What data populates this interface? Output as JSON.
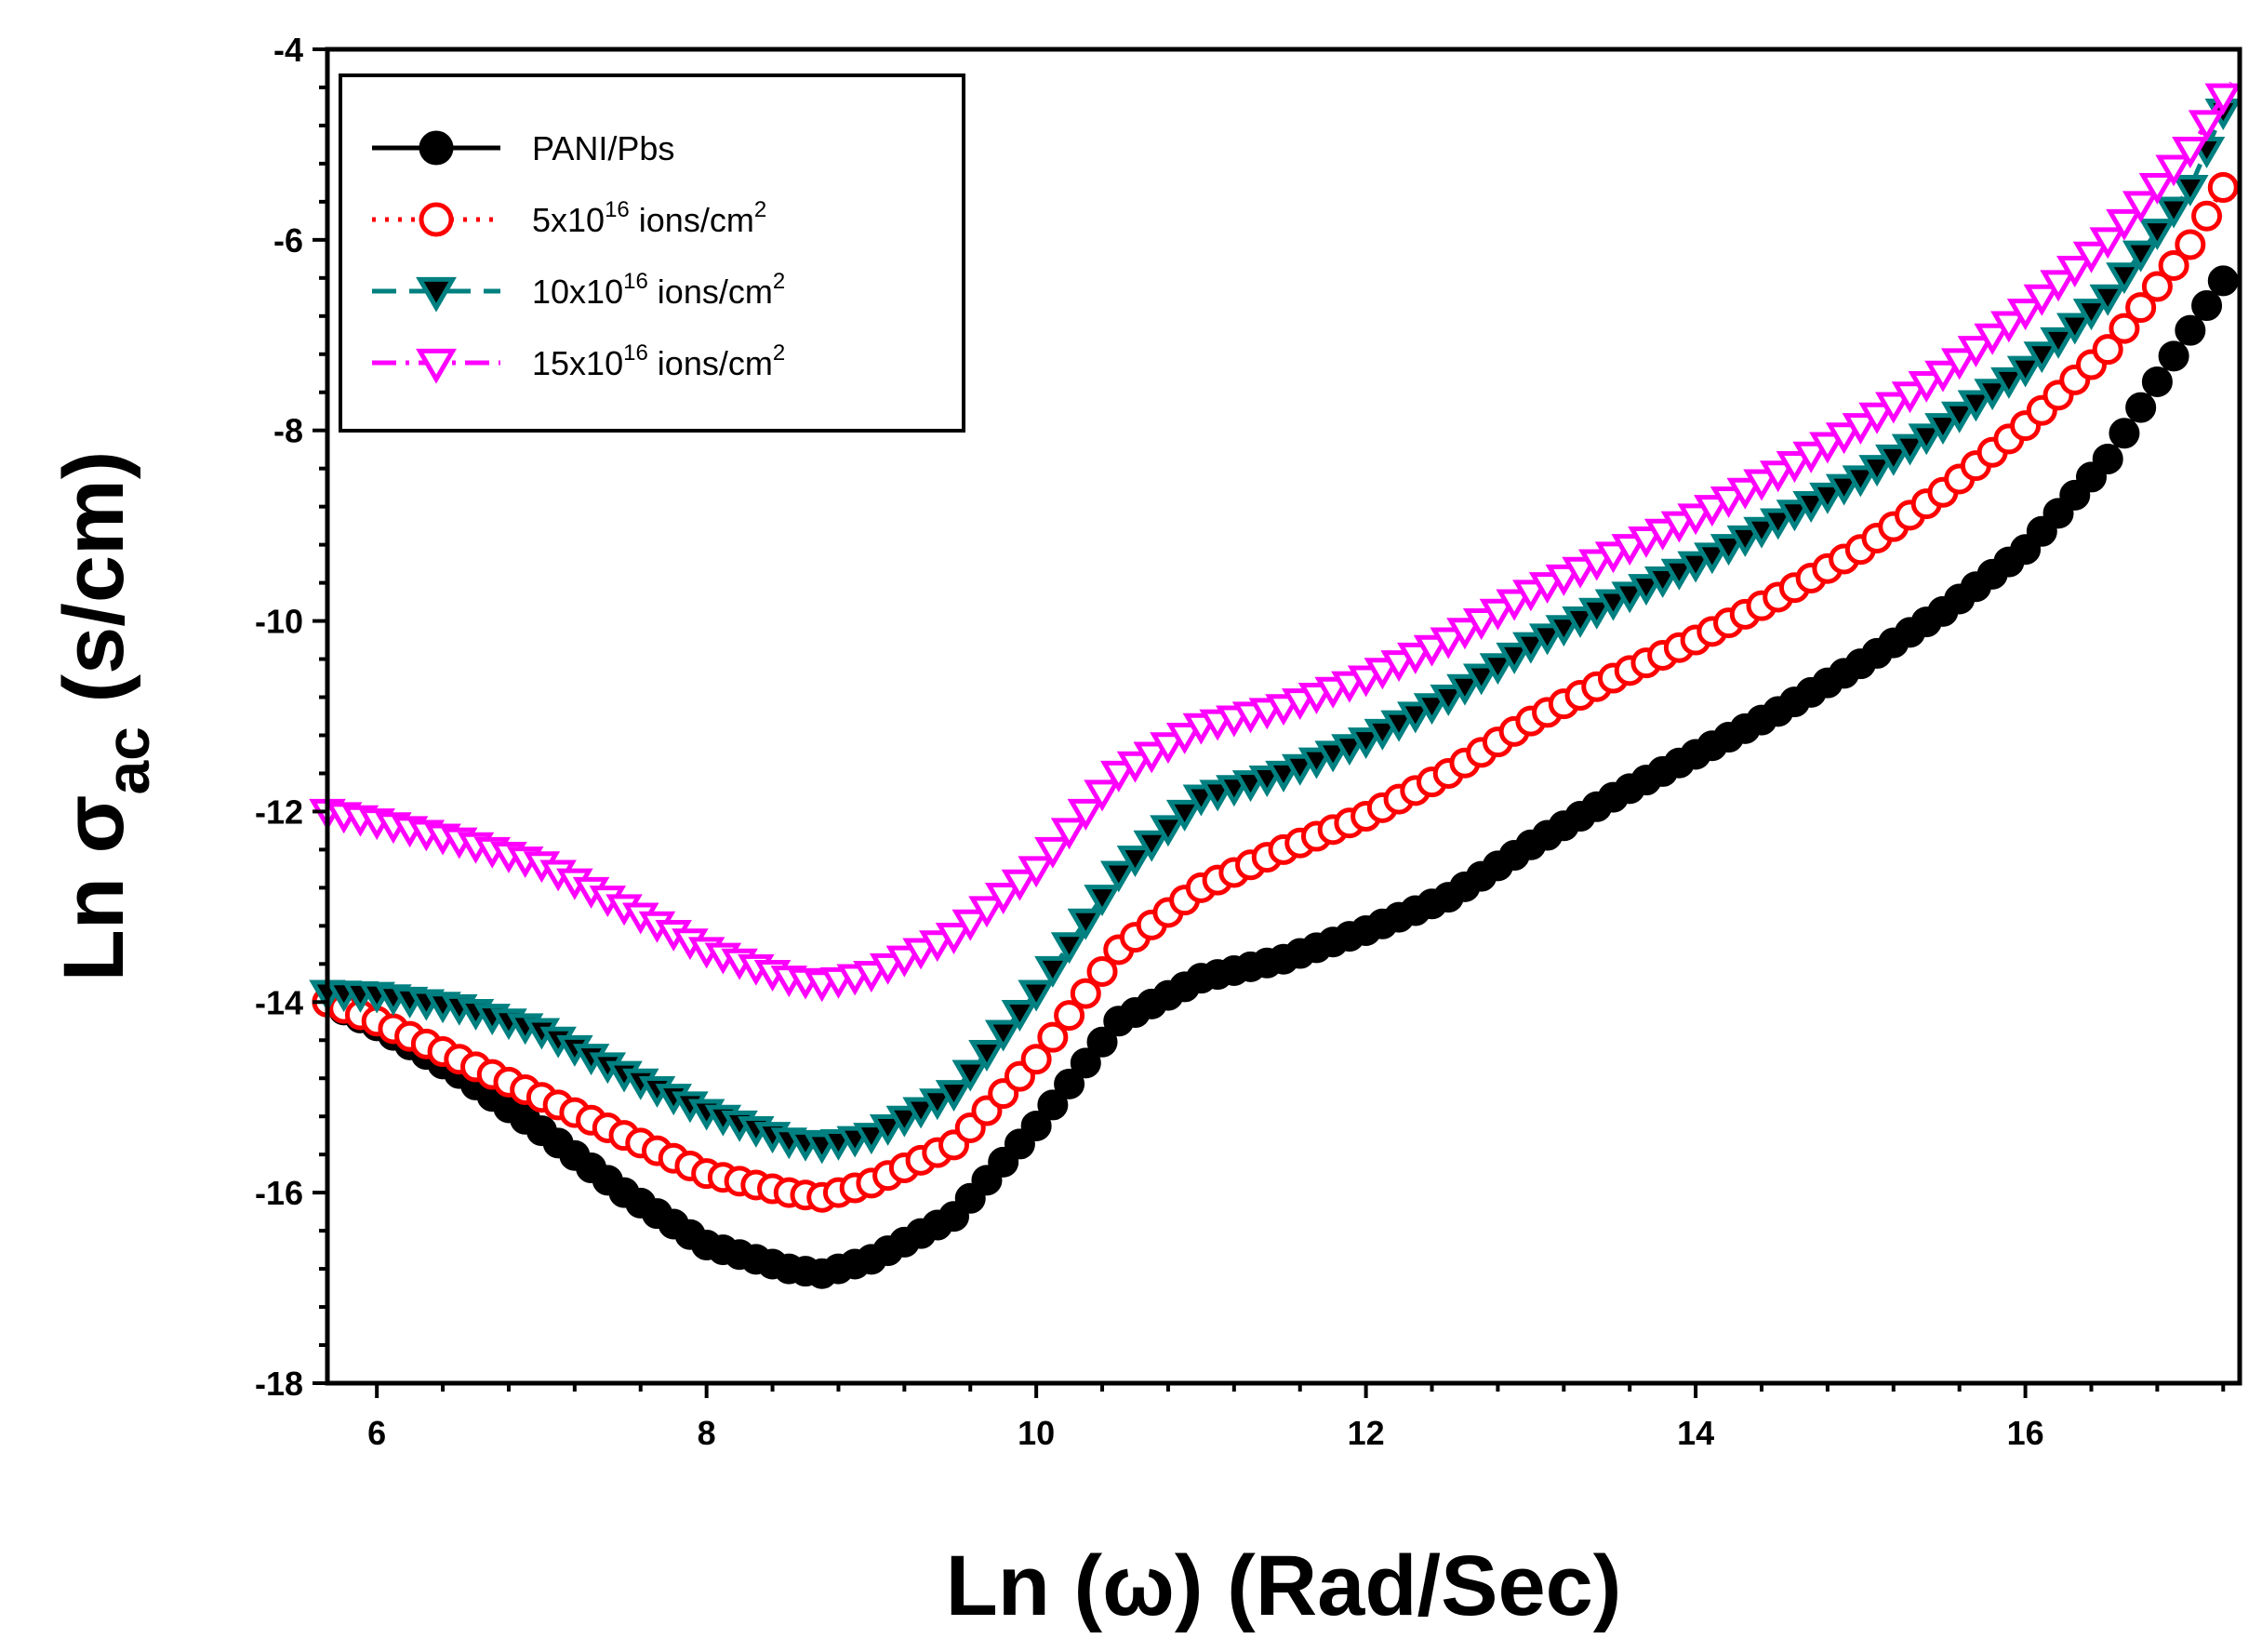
{
  "chart_data": {
    "type": "scatter",
    "xlabel": "Ln (ω) (Rad/Sec)",
    "ylabel": "Ln σac (s/cm)",
    "ylabel_parts": {
      "prefix": "Ln σ",
      "subscript": "ac",
      "suffix": " (s/cm)"
    },
    "xlim": [
      5.7,
      17.3
    ],
    "ylim": [
      -18,
      -4
    ],
    "x_ticks": [
      6,
      8,
      10,
      12,
      14,
      16
    ],
    "y_ticks": [
      -4,
      -6,
      -8,
      -10,
      -12,
      -14,
      -16,
      -18
    ],
    "x_tick_labels": [
      "6",
      "8",
      "10",
      "12",
      "14",
      "16"
    ],
    "y_tick_labels": [
      "-4",
      "-6",
      "-8",
      "-10",
      "-12",
      "-14",
      "-16",
      "-18"
    ],
    "legend_position": "top-left",
    "legend": [
      {
        "label": "PANI/Pbs",
        "base": "PANI/Pbs",
        "sup": "",
        "unit": "",
        "unit_sup": ""
      },
      {
        "label": "5x10^16 ions/cm^2",
        "base": "5x10",
        "sup": "16",
        "unit": " ions/cm",
        "unit_sup": "2"
      },
      {
        "label": "10x10^16 ions/cm^2",
        "base": "10x10",
        "sup": "16",
        "unit": " ions/cm",
        "unit_sup": "2"
      },
      {
        "label": "15x10^16 ions/cm^2",
        "base": "15x10",
        "sup": "16",
        "unit": " ions/cm",
        "unit_sup": "2"
      }
    ],
    "x": [
      5.7,
      6.0,
      6.5,
      7.0,
      7.5,
      8.0,
      8.5,
      8.7,
      9.0,
      9.5,
      10.0,
      10.5,
      11.0,
      11.5,
      12.0,
      12.5,
      13.0,
      13.5,
      14.0,
      14.5,
      15.0,
      15.5,
      16.0,
      16.5,
      17.0,
      17.25
    ],
    "series": [
      {
        "name": "PANI/Pbs",
        "color": "#000000",
        "marker": "circle-filled",
        "line": "solid",
        "values": [
          -14.0,
          -14.25,
          -14.75,
          -15.35,
          -16.0,
          -16.55,
          -16.8,
          -16.85,
          -16.7,
          -16.25,
          -15.3,
          -14.2,
          -13.75,
          -13.55,
          -13.25,
          -12.9,
          -12.35,
          -11.85,
          -11.4,
          -10.95,
          -10.45,
          -9.9,
          -9.25,
          -8.3,
          -6.95,
          -6.3
        ]
      },
      {
        "name": "5x10^16 ions/cm^2",
        "color": "#ff0000",
        "marker": "circle-open",
        "line": "dotted",
        "values": [
          -14.0,
          -14.2,
          -14.6,
          -15.0,
          -15.4,
          -15.8,
          -16.0,
          -16.05,
          -15.9,
          -15.5,
          -14.6,
          -13.45,
          -12.8,
          -12.4,
          -12.05,
          -11.6,
          -11.05,
          -10.6,
          -10.2,
          -9.75,
          -9.25,
          -8.65,
          -7.95,
          -7.15,
          -6.05,
          -5.3
        ]
      },
      {
        "name": "10x10^16 ions/cm^2",
        "color": "#008080",
        "marker": "triangle-down-filled",
        "line": "dashed",
        "values": [
          -13.9,
          -13.92,
          -14.05,
          -14.3,
          -14.75,
          -15.15,
          -15.45,
          -15.5,
          -15.4,
          -14.95,
          -13.9,
          -12.65,
          -11.85,
          -11.6,
          -11.25,
          -10.8,
          -10.25,
          -9.8,
          -9.4,
          -8.95,
          -8.5,
          -7.95,
          -7.35,
          -6.6,
          -5.45,
          -4.45
        ]
      },
      {
        "name": "15x10^16 ions/cm^2",
        "color": "#ff00ff",
        "marker": "triangle-down-open",
        "line": "dashdot",
        "values": [
          -12.0,
          -12.1,
          -12.3,
          -12.55,
          -13.0,
          -13.45,
          -13.75,
          -13.8,
          -13.7,
          -13.3,
          -12.6,
          -11.6,
          -11.1,
          -10.9,
          -10.6,
          -10.2,
          -9.7,
          -9.3,
          -8.9,
          -8.45,
          -7.95,
          -7.4,
          -6.75,
          -6.0,
          -5.05,
          -4.35
        ]
      }
    ]
  }
}
